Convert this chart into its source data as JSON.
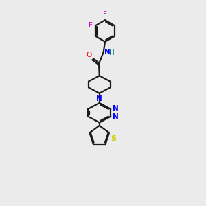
{
  "background_color": "#ebebeb",
  "bond_color": "#1a1a1a",
  "N_color": "#0000ff",
  "O_color": "#ff0000",
  "S_color": "#cccc00",
  "F_color": "#cc00cc",
  "H_color": "#008080",
  "figsize": [
    3.0,
    3.0
  ],
  "dpi": 100,
  "xlim": [
    0,
    10
  ],
  "ylim": [
    0,
    20
  ]
}
